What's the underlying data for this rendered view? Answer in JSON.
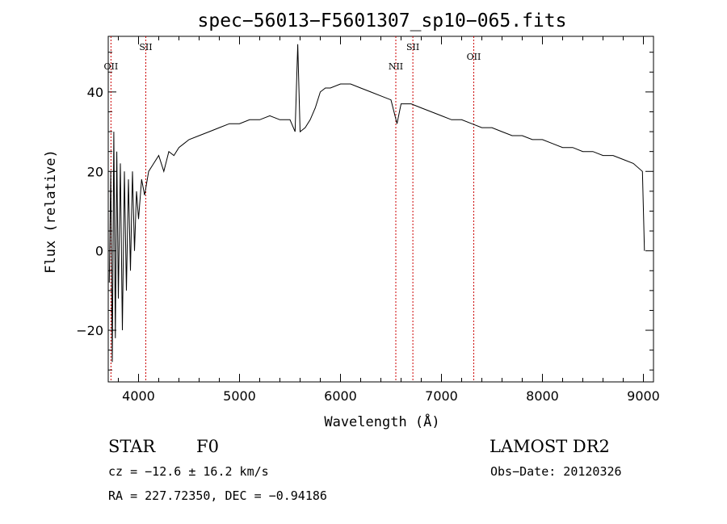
{
  "chart_data": {
    "type": "line",
    "title": "spec−56013−F5601307_sp10−065.fits",
    "xlabel": "Wavelength (Å)",
    "ylabel": "Flux (relative)",
    "xlim": [
      3700,
      9100
    ],
    "ylim": [
      -33,
      54
    ],
    "x_ticks": [
      4000,
      5000,
      6000,
      7000,
      8000,
      9000
    ],
    "x_tick_labels": [
      "4000",
      "5000",
      "6000",
      "7000",
      "8000",
      "9000"
    ],
    "y_ticks": [
      -20,
      0,
      20,
      40
    ],
    "y_tick_labels": [
      "−20",
      "0",
      "20",
      "40"
    ],
    "grid": false,
    "line_color": "#000000",
    "marker_color": "#cc0000",
    "series": [
      {
        "x": [
          3710,
          3725,
          3740,
          3755,
          3770,
          3785,
          3800,
          3820,
          3840,
          3860,
          3880,
          3900,
          3920,
          3940,
          3960,
          3980,
          4000,
          4030,
          4060,
          4100,
          4150,
          4200,
          4250,
          4300,
          4350,
          4400,
          4450,
          4500,
          4600,
          4700,
          4800,
          4900,
          5000,
          5100,
          5200,
          5300,
          5400,
          5500,
          5550,
          5577,
          5600,
          5650,
          5700,
          5750,
          5800,
          5850,
          5900,
          6000,
          6100,
          6200,
          6300,
          6400,
          6500,
          6560,
          6600,
          6700,
          6800,
          6900,
          7000,
          7100,
          7200,
          7300,
          7400,
          7500,
          7600,
          7700,
          7800,
          7900,
          8000,
          8100,
          8200,
          8300,
          8400,
          8500,
          8600,
          8700,
          8800,
          8900,
          8990,
          9010
        ],
        "y": [
          -8,
          20,
          -28,
          30,
          -22,
          25,
          -12,
          22,
          -20,
          20,
          -10,
          18,
          -5,
          20,
          0,
          15,
          8,
          18,
          14,
          20,
          22,
          24,
          20,
          25,
          24,
          26,
          27,
          28,
          29,
          30,
          31,
          32,
          32,
          33,
          33,
          34,
          33,
          33,
          30,
          52,
          30,
          31,
          33,
          36,
          40,
          41,
          41,
          42,
          42,
          41,
          40,
          39,
          38,
          32,
          37,
          37,
          36,
          35,
          34,
          33,
          33,
          32,
          31,
          31,
          30,
          29,
          29,
          28,
          28,
          27,
          26,
          26,
          25,
          25,
          24,
          24,
          23,
          22,
          20,
          0
        ]
      }
    ],
    "emission_lines": [
      {
        "label": "OII",
        "x": 3727
      },
      {
        "label": "SII",
        "x": 4072
      },
      {
        "label": "NII",
        "x": 6548
      },
      {
        "label": "SII",
        "x": 6717
      },
      {
        "label": "OII",
        "x": 7320
      }
    ]
  },
  "info": {
    "class_label": "STAR",
    "subclass_label": "F0",
    "survey": "LAMOST DR2",
    "cz_text": "cz = −12.6 ± 16.2 km/s",
    "obs_date": "Obs−Date: 20120326",
    "coords": "RA = 227.72350, DEC =  −0.94186"
  }
}
